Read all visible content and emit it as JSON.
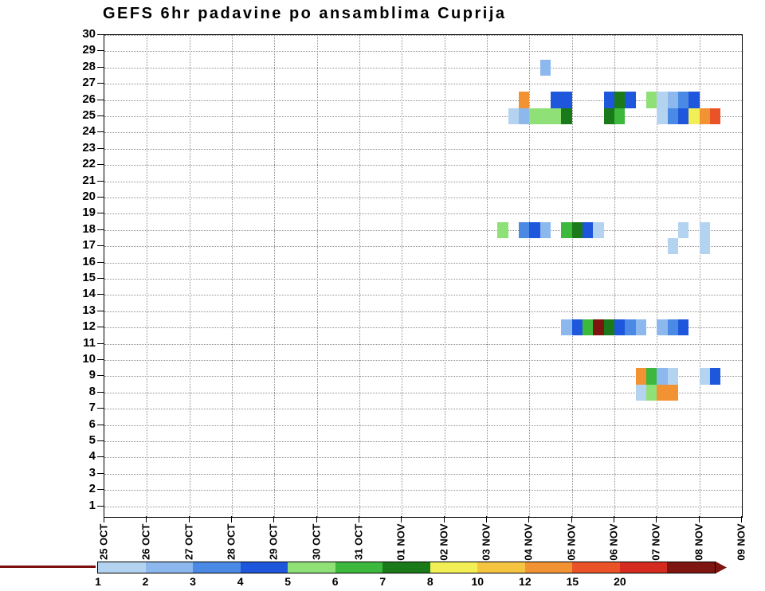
{
  "chart_data": {
    "type": "heatmap",
    "title": "GEFS 6hr padavine po ansamblima Cuprija",
    "x_labels": [
      "25 OCT",
      "26 OCT",
      "27 OCT",
      "28 OCT",
      "29 OCT",
      "30 OCT",
      "31 OCT",
      "01 NOV",
      "02 NOV",
      "03 NOV",
      "04 NOV",
      "05 NOV",
      "06 NOV",
      "07 NOV",
      "08 NOV",
      "09 NOV"
    ],
    "steps_per_day": 4,
    "x_total_steps": 60,
    "y_min": 1,
    "y_max": 30,
    "grid": "dotted",
    "legend": {
      "values": [
        1,
        2,
        3,
        4,
        5,
        6,
        7,
        8,
        10,
        12,
        15,
        20
      ],
      "colors": [
        "#b4d3f0",
        "#8cb8ee",
        "#4a8ae4",
        "#1e56dc",
        "#8fe077",
        "#3cb83c",
        "#1a7a1a",
        "#f2ee55",
        "#f5c542",
        "#f29333",
        "#ea5328",
        "#d42a20",
        "#7e1510"
      ]
    },
    "cell_format": [
      "ensemble_member",
      "six_hour_step_index_from_25_OCT_00",
      "precip_mm"
    ],
    "cells": [
      [
        28,
        41,
        2
      ],
      [
        26,
        39,
        12
      ],
      [
        26,
        42,
        4
      ],
      [
        26,
        43,
        4
      ],
      [
        26,
        47,
        4
      ],
      [
        26,
        48,
        7
      ],
      [
        26,
        49,
        4
      ],
      [
        26,
        51,
        5
      ],
      [
        26,
        52,
        1
      ],
      [
        26,
        53,
        2
      ],
      [
        26,
        54,
        3
      ],
      [
        26,
        55,
        4
      ],
      [
        25,
        38,
        1
      ],
      [
        25,
        39,
        2
      ],
      [
        25,
        40,
        5
      ],
      [
        25,
        41,
        5
      ],
      [
        25,
        42,
        5
      ],
      [
        25,
        43,
        7
      ],
      [
        25,
        47,
        7
      ],
      [
        25,
        48,
        6
      ],
      [
        25,
        52,
        1
      ],
      [
        25,
        53,
        3
      ],
      [
        25,
        54,
        4
      ],
      [
        25,
        55,
        8
      ],
      [
        25,
        56,
        12
      ],
      [
        25,
        57,
        15
      ],
      [
        18,
        37,
        5
      ],
      [
        18,
        39,
        3
      ],
      [
        18,
        40,
        4
      ],
      [
        18,
        41,
        2
      ],
      [
        18,
        43,
        6
      ],
      [
        18,
        44,
        7
      ],
      [
        18,
        45,
        4
      ],
      [
        18,
        46,
        1
      ],
      [
        18,
        54,
        1
      ],
      [
        18,
        56,
        1
      ],
      [
        17,
        53,
        1
      ],
      [
        17,
        56,
        1
      ],
      [
        12,
        43,
        2
      ],
      [
        12,
        44,
        4
      ],
      [
        12,
        45,
        6
      ],
      [
        12,
        46,
        25
      ],
      [
        12,
        47,
        7
      ],
      [
        12,
        48,
        4
      ],
      [
        12,
        49,
        3
      ],
      [
        12,
        50,
        2
      ],
      [
        12,
        52,
        2
      ],
      [
        12,
        53,
        3
      ],
      [
        12,
        54,
        4
      ],
      [
        9,
        50,
        12
      ],
      [
        9,
        51,
        6
      ],
      [
        9,
        52,
        2
      ],
      [
        9,
        53,
        1
      ],
      [
        9,
        56,
        1
      ],
      [
        9,
        57,
        4
      ],
      [
        8,
        50,
        1
      ],
      [
        8,
        51,
        5
      ],
      [
        8,
        52,
        12
      ],
      [
        8,
        53,
        12
      ]
    ],
    "baseline_color": "#7a1010"
  }
}
